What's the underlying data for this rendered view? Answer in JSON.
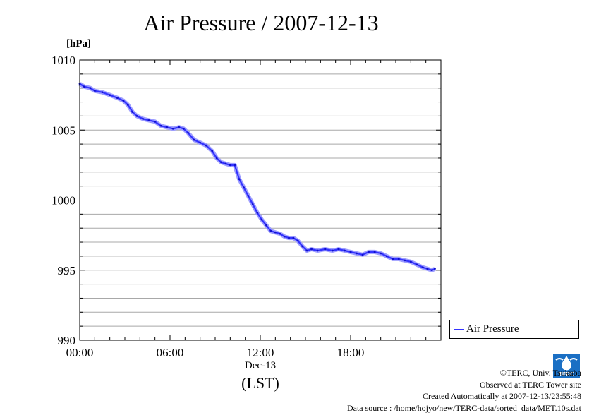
{
  "chart_data": {
    "type": "line",
    "title": "Air Pressure / 2007-12-13",
    "ylabel": "[hPa]",
    "xlabel": "(LST)",
    "x_axis_name": "Dec-13",
    "ylim": [
      990,
      1010
    ],
    "xlim": [
      0,
      24
    ],
    "yticks": [
      "990",
      "995",
      "1000",
      "1005",
      "1010"
    ],
    "xticks": [
      "00:00",
      "06:00",
      "12:00",
      "18:00"
    ],
    "grid": true,
    "legend_position": "bottom-right-outside",
    "series": [
      {
        "name": "Air Pressure",
        "color": "#3333ff",
        "x": [
          0.0,
          0.3,
          0.7,
          1.0,
          1.5,
          2.0,
          2.5,
          2.9,
          3.2,
          3.5,
          3.8,
          4.2,
          4.6,
          5.0,
          5.4,
          5.8,
          6.2,
          6.6,
          6.9,
          7.2,
          7.6,
          8.0,
          8.4,
          8.8,
          9.1,
          9.4,
          9.7,
          10.0,
          10.3,
          10.6,
          10.9,
          11.2,
          11.5,
          11.8,
          12.1,
          12.4,
          12.7,
          13.0,
          13.3,
          13.6,
          13.9,
          14.2,
          14.5,
          14.8,
          15.1,
          15.4,
          15.8,
          16.3,
          16.8,
          17.2,
          17.6,
          18.0,
          18.4,
          18.8,
          19.2,
          19.6,
          20.0,
          20.4,
          20.8,
          21.2,
          21.6,
          22.0,
          22.4,
          22.8,
          23.1,
          23.4,
          23.6
        ],
        "y": [
          1008.3,
          1008.1,
          1008.0,
          1007.8,
          1007.7,
          1007.5,
          1007.3,
          1007.1,
          1006.8,
          1006.3,
          1006.0,
          1005.8,
          1005.7,
          1005.6,
          1005.3,
          1005.2,
          1005.1,
          1005.2,
          1005.1,
          1004.8,
          1004.3,
          1004.1,
          1003.9,
          1003.5,
          1003.0,
          1002.7,
          1002.6,
          1002.5,
          1002.5,
          1001.5,
          1000.9,
          1000.3,
          999.7,
          999.1,
          998.6,
          998.2,
          997.8,
          997.7,
          997.6,
          997.4,
          997.3,
          997.3,
          997.1,
          996.7,
          996.4,
          996.5,
          996.4,
          996.5,
          996.4,
          996.5,
          996.4,
          996.3,
          996.2,
          996.1,
          996.3,
          996.3,
          996.2,
          996.0,
          995.8,
          995.8,
          995.7,
          995.6,
          995.4,
          995.2,
          995.1,
          995.0,
          995.1
        ]
      }
    ]
  },
  "credits": {
    "copyright": "©TERC, Univ. Tsukuba",
    "observed": "Observed at TERC Tower site",
    "created": "Created Automatically at 2007-12-13/23:55:48",
    "source": "Data source : /home/hojyo/new/TERC-data/sorted_data/MET.10s.dat"
  },
  "logo": {
    "text": "TERC"
  }
}
